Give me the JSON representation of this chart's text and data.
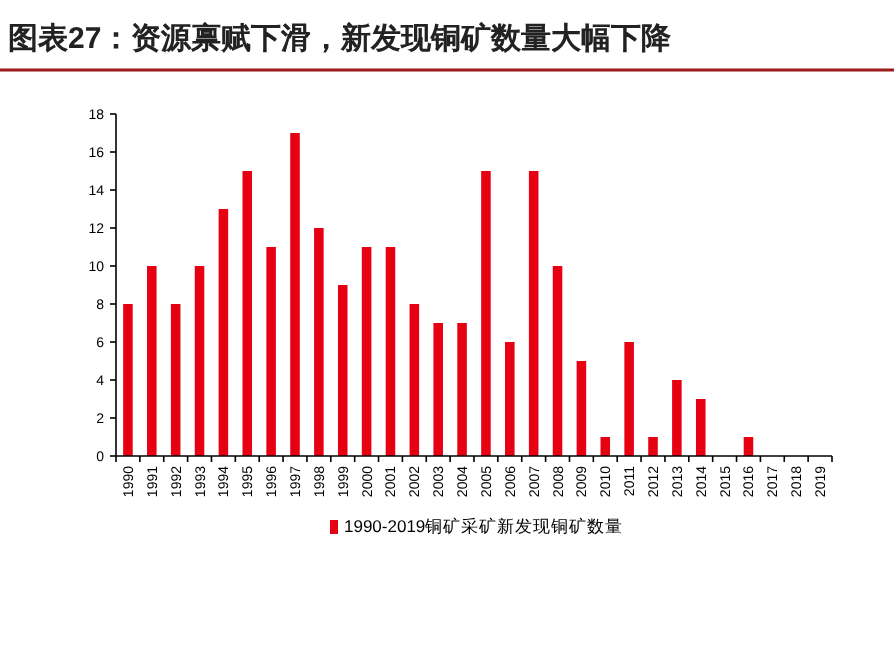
{
  "chart_data": {
    "type": "bar",
    "title": "图表27：资源禀赋下滑，新发现铜矿数量大幅下降",
    "categories": [
      "1990",
      "1991",
      "1992",
      "1993",
      "1994",
      "1995",
      "1996",
      "1997",
      "1998",
      "1999",
      "2000",
      "2001",
      "2002",
      "2003",
      "2004",
      "2005",
      "2006",
      "2007",
      "2008",
      "2009",
      "2010",
      "2011",
      "2012",
      "2013",
      "2014",
      "2015",
      "2016",
      "2017",
      "2018",
      "2019"
    ],
    "series": [
      {
        "name": "1990-2019铜矿采矿新发现铜矿数量",
        "color": "#e60012",
        "values": [
          8,
          10,
          8,
          10,
          13,
          15,
          11,
          17,
          12,
          9,
          11,
          11,
          8,
          7,
          7,
          15,
          6,
          15,
          10,
          5,
          1,
          6,
          1,
          4,
          3,
          0,
          1,
          0,
          0,
          0
        ]
      }
    ],
    "ylim": [
      0,
      18
    ],
    "yticks": [
      0,
      2,
      4,
      6,
      8,
      10,
      12,
      14,
      16,
      18
    ],
    "grid": false,
    "legend": "bottom"
  }
}
